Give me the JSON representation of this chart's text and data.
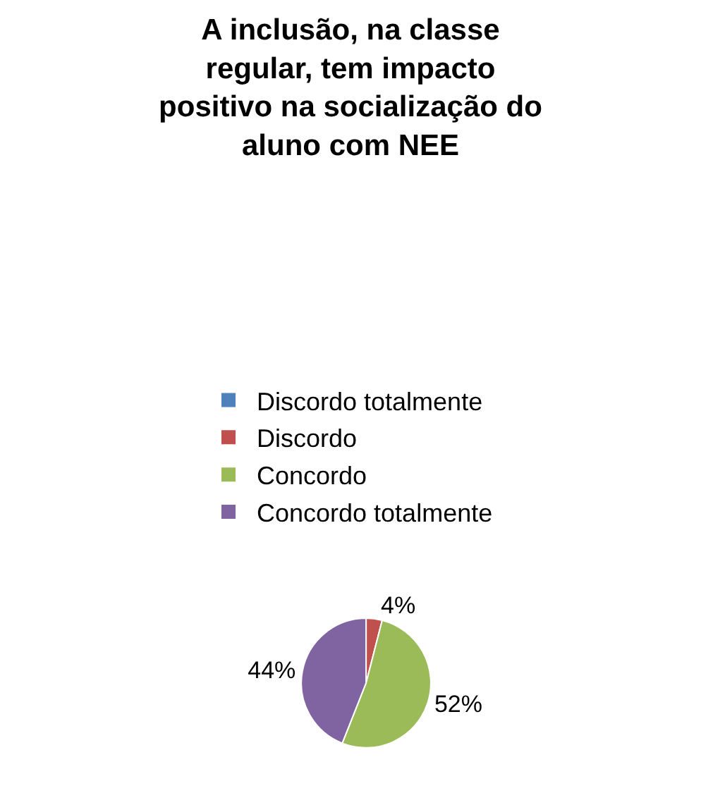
{
  "chart_data": {
    "type": "pie",
    "title": "A inclusão, na classe regular, tem impacto positivo na socialização do aluno com NEE",
    "categories": [
      "Discordo totalmente",
      "Discordo",
      "Concordo",
      "Concordo totalmente"
    ],
    "values": [
      0,
      4,
      52,
      44
    ],
    "value_labels": [
      null,
      "4%",
      "52%",
      "44%"
    ],
    "colors": [
      "#4f81bd",
      "#c0504d",
      "#9bbb59",
      "#8064a2"
    ],
    "legend": "top"
  }
}
